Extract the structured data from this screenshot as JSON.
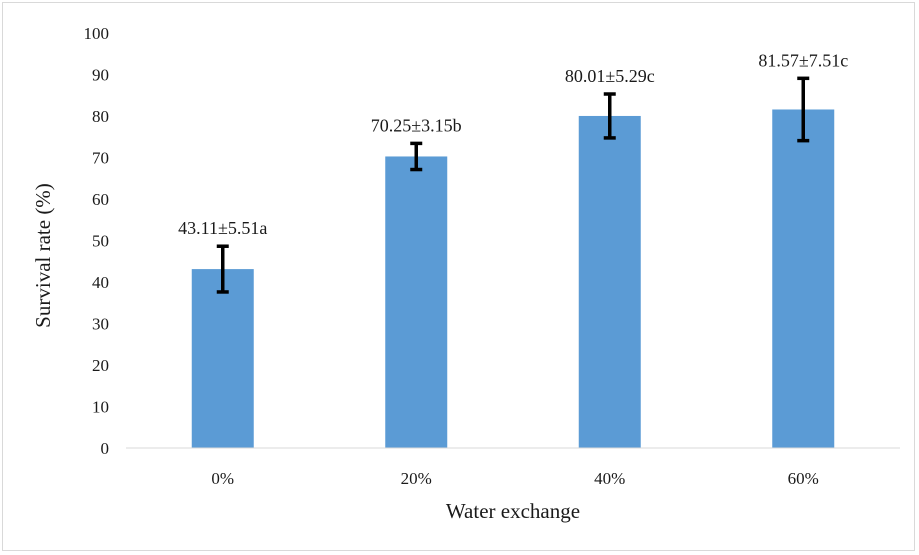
{
  "chart_data": {
    "type": "bar",
    "categories": [
      "0%",
      "20%",
      "40%",
      "60%"
    ],
    "values": [
      43.11,
      70.25,
      80.01,
      81.57
    ],
    "errors": [
      5.51,
      3.15,
      5.29,
      7.51
    ],
    "data_labels": [
      "43.11±5.51a",
      "70.25±3.15b",
      "80.01±5.29c",
      "81.57±7.51c"
    ],
    "xlabel": "Water exchange",
    "ylabel": "Survival rate (%)",
    "ylim": [
      0,
      100
    ],
    "yticks": [
      0,
      10,
      20,
      30,
      40,
      50,
      60,
      70,
      80,
      90,
      100
    ],
    "grid": false,
    "legend": "none",
    "bar_color": "#5b9bd5",
    "error_bar_color": "#000000"
  }
}
